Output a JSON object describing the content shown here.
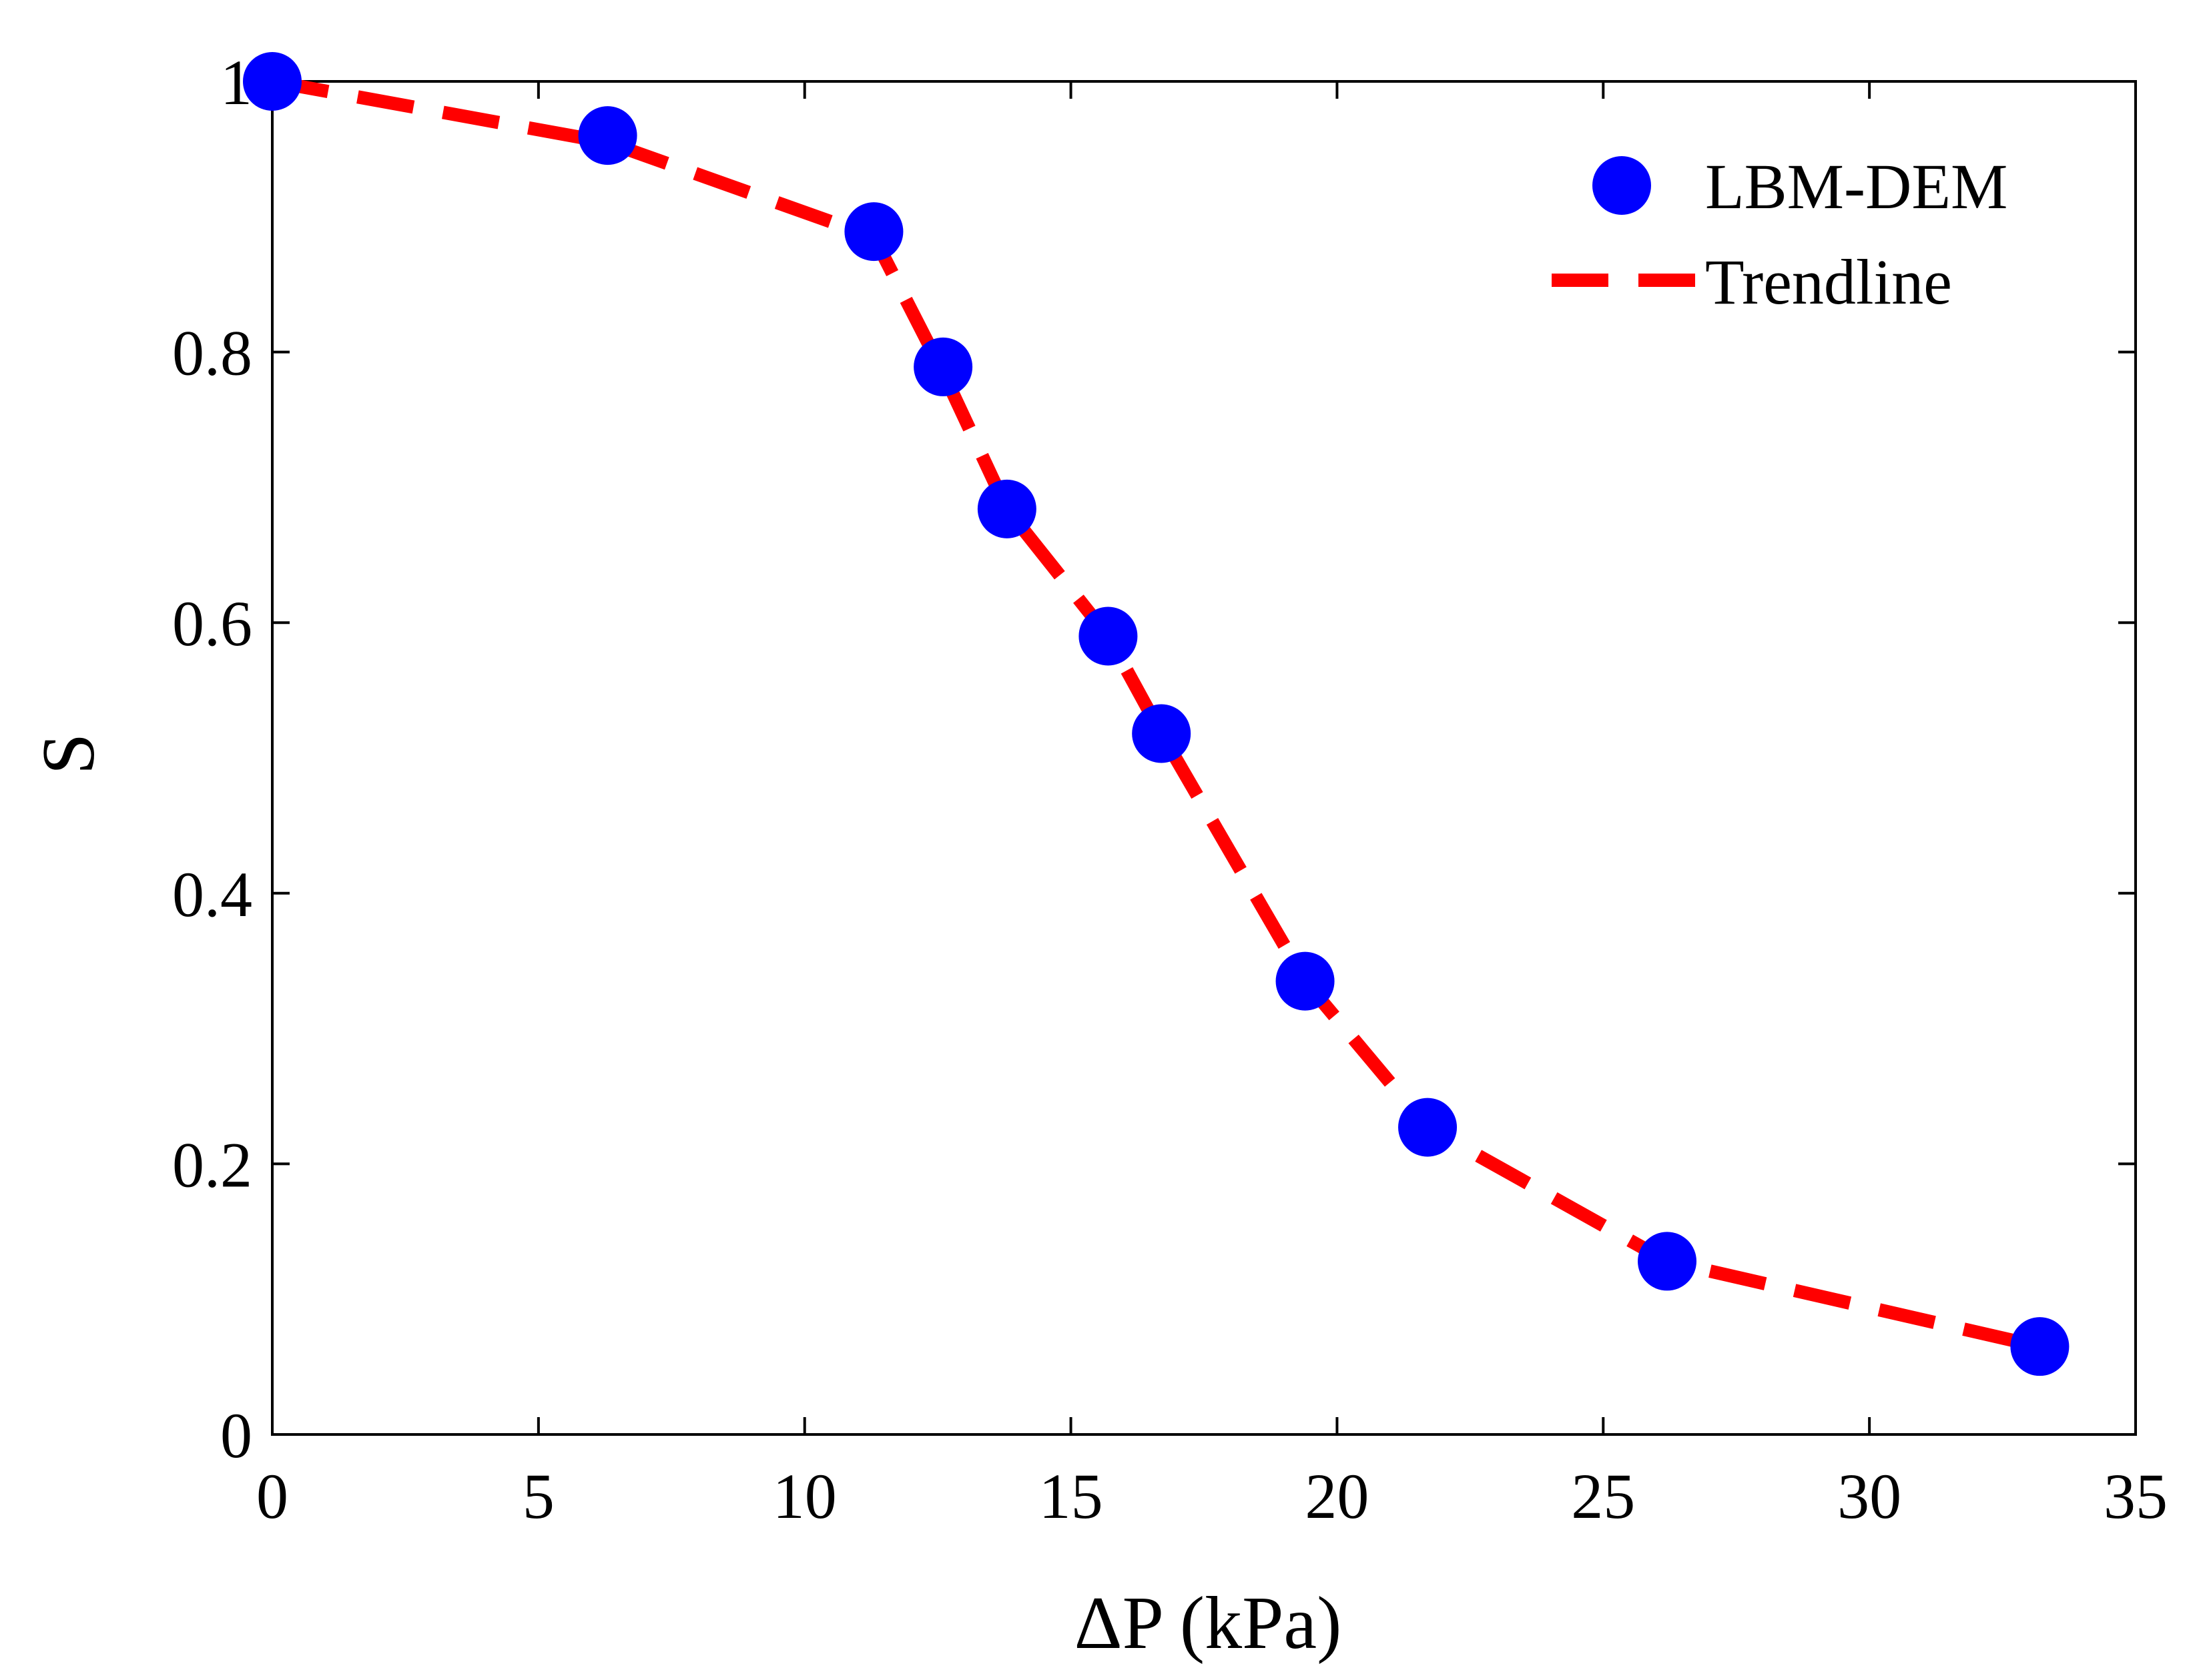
{
  "chart_data": {
    "type": "scatter",
    "title": "",
    "xlabel": "ΔP (kPa)",
    "ylabel": "S",
    "xlim": [
      0,
      35
    ],
    "ylim": [
      0,
      1
    ],
    "xticks": [
      "0",
      "5",
      "10",
      "15",
      "20",
      "25",
      "30",
      "35"
    ],
    "yticks": [
      "0",
      "0.2",
      "0.4",
      "0.6",
      "0.8",
      "1"
    ],
    "grid": false,
    "legend_position": "top-right",
    "colors": {
      "points": "#0000ff",
      "trend": "#ff0000",
      "axis": "#000000"
    },
    "series": [
      {
        "name": "LBM-DEM",
        "kind": "points",
        "x": [
          0.0,
          6.3,
          11.3,
          12.6,
          13.8,
          15.7,
          16.7,
          19.4,
          21.7,
          26.2,
          33.2
        ],
        "y": [
          1.0,
          0.96,
          0.889,
          0.789,
          0.684,
          0.59,
          0.518,
          0.335,
          0.227,
          0.128,
          0.065
        ]
      },
      {
        "name": "Trendline",
        "kind": "dashed-line",
        "x": [
          0.0,
          6.3,
          11.3,
          12.6,
          13.8,
          15.7,
          16.7,
          19.4,
          21.7,
          26.2,
          33.2
        ],
        "y": [
          1.0,
          0.955,
          0.885,
          0.785,
          0.684,
          0.59,
          0.518,
          0.335,
          0.227,
          0.128,
          0.065
        ]
      }
    ]
  }
}
